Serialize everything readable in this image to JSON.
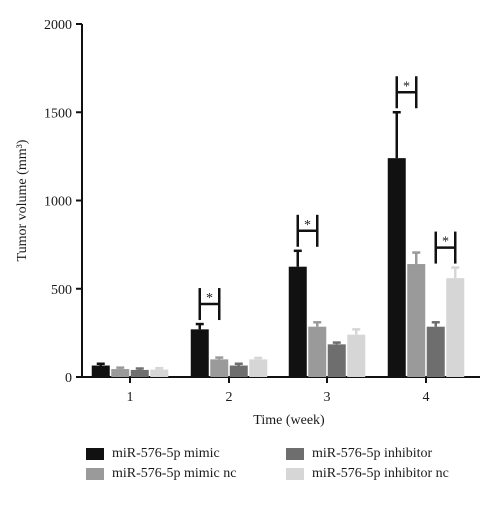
{
  "chart_data": {
    "type": "bar",
    "xlabel": "Time (week)",
    "ylabel": "Tumor volume (mm³)",
    "categories": [
      "1",
      "2",
      "3",
      "4"
    ],
    "ylim": [
      0,
      2000
    ],
    "yticks": [
      "0",
      "500",
      "1000",
      "1500",
      "2000"
    ],
    "series": [
      {
        "name": "miR-576-5p mimic",
        "color": "#111111",
        "values": [
          65,
          270,
          625,
          1240
        ],
        "errors": [
          10,
          30,
          90,
          260
        ]
      },
      {
        "name": "miR-576-5p mimic nc",
        "color": "#9a9a9a",
        "values": [
          45,
          100,
          285,
          640
        ],
        "errors": [
          8,
          10,
          25,
          65
        ]
      },
      {
        "name": "miR-576-5p inhibitor",
        "color": "#6e6e6e",
        "values": [
          40,
          65,
          185,
          285
        ],
        "errors": [
          8,
          10,
          10,
          25
        ]
      },
      {
        "name": "miR-576-5p inhibitor nc",
        "color": "#d6d6d6",
        "values": [
          42,
          100,
          240,
          560
        ],
        "errors": [
          8,
          8,
          30,
          60
        ]
      }
    ],
    "significance": [
      {
        "category": "2",
        "between": [
          0,
          1
        ],
        "label": "*"
      },
      {
        "category": "3",
        "between": [
          0,
          1
        ],
        "label": "*"
      },
      {
        "category": "4",
        "between": [
          0,
          1
        ],
        "label": "*"
      },
      {
        "category": "4",
        "between": [
          2,
          3
        ],
        "label": "*"
      }
    ],
    "grid": false,
    "legend": "bottom"
  }
}
